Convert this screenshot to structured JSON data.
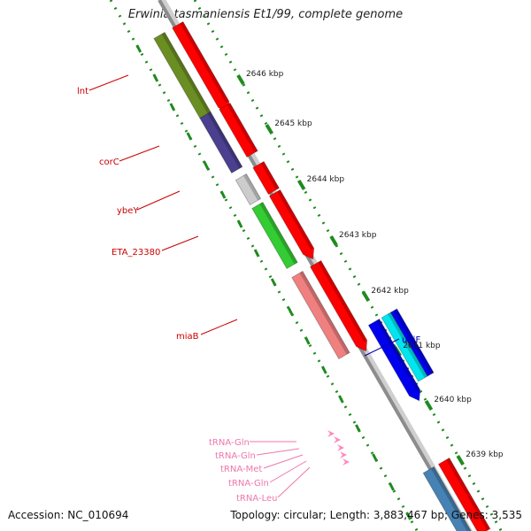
{
  "title": "Erwinia tasmaniensis Et1/99, complete genome",
  "accession_text": "Accession: NC_010694",
  "summary_text": "Topology: circular; Length: 3,883,467 bp; Genes: 3,535",
  "tick_labels": [
    "2646 kbp",
    "2645 kbp",
    "2644 kbp",
    "2643 kbp",
    "2642 kbp",
    "2641 kbp",
    "2640 kbp",
    "2639 kbp"
  ],
  "gene_labels": [
    {
      "name": "lnt",
      "color": "#cc0000"
    },
    {
      "name": "corC",
      "color": "#cc0000"
    },
    {
      "name": "ybeY",
      "color": "#cc0000"
    },
    {
      "name": "ETA_23380",
      "color": "#cc0000"
    },
    {
      "name": "miaB",
      "color": "#cc0000"
    },
    {
      "name": "ubiF",
      "color": "#0000aa"
    },
    {
      "name": "tRNA-Gln",
      "color": "#ee77aa"
    },
    {
      "name": "tRNA-Gln",
      "color": "#ee77aa"
    },
    {
      "name": "tRNA-Met",
      "color": "#ee77aa"
    },
    {
      "name": "tRNA-Gln",
      "color": "#ee77aa"
    },
    {
      "name": "tRNA-Leu",
      "color": "#ee77aa"
    }
  ],
  "colors": {
    "backbone": "#8c8c8c",
    "ticks": "#1f8a1f",
    "cds": "#ff0000",
    "lnt": "#6b8e23",
    "corC": "#4b3f8f",
    "ybeY": "#cccccc",
    "eta": "#33cc33",
    "miaB": "#f08080",
    "ubiF": "#0000ee",
    "ubiF_inner": "#00e5ee",
    "trna": "#ff88bb",
    "lower_gene": "#4682b4"
  }
}
